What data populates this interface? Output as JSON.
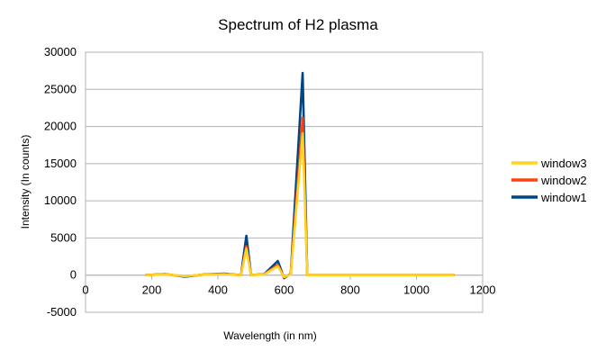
{
  "chart_data": {
    "type": "line",
    "title": "Spectrum of H2 plasma",
    "xlabel": "Wavelength (in nm)",
    "ylabel": "Intensity (In counts)",
    "xlim": [
      0,
      1200
    ],
    "ylim": [
      -5000,
      30000
    ],
    "x_ticks": [
      "0",
      "200",
      "400",
      "600",
      "800",
      "1000",
      "1200"
    ],
    "y_ticks": [
      "-5000",
      "0",
      "5000",
      "10000",
      "15000",
      "20000",
      "25000",
      "30000"
    ],
    "grid": "horizontal",
    "legend_position": "right",
    "series": [
      {
        "name": "window1",
        "color": "#004586",
        "points": [
          [
            180,
            0
          ],
          [
            240,
            150
          ],
          [
            300,
            -200
          ],
          [
            360,
            100
          ],
          [
            420,
            200
          ],
          [
            470,
            0
          ],
          [
            486,
            5300
          ],
          [
            500,
            0
          ],
          [
            540,
            150
          ],
          [
            581,
            1900
          ],
          [
            600,
            -400
          ],
          [
            620,
            200
          ],
          [
            656,
            27200
          ],
          [
            670,
            0
          ],
          [
            800,
            0
          ],
          [
            1000,
            0
          ],
          [
            1115,
            0
          ]
        ]
      },
      {
        "name": "window2",
        "color": "#ff420e",
        "points": [
          [
            180,
            0
          ],
          [
            240,
            120
          ],
          [
            300,
            -150
          ],
          [
            360,
            80
          ],
          [
            420,
            150
          ],
          [
            470,
            0
          ],
          [
            486,
            3900
          ],
          [
            500,
            0
          ],
          [
            540,
            120
          ],
          [
            581,
            1400
          ],
          [
            600,
            -300
          ],
          [
            620,
            150
          ],
          [
            656,
            21200
          ],
          [
            670,
            0
          ],
          [
            800,
            0
          ],
          [
            1000,
            0
          ],
          [
            1115,
            0
          ]
        ]
      },
      {
        "name": "window3",
        "color": "#ffd320",
        "points": [
          [
            180,
            0
          ],
          [
            240,
            100
          ],
          [
            300,
            -120
          ],
          [
            360,
            60
          ],
          [
            420,
            120
          ],
          [
            470,
            0
          ],
          [
            486,
            3600
          ],
          [
            500,
            0
          ],
          [
            540,
            100
          ],
          [
            581,
            1200
          ],
          [
            600,
            -250
          ],
          [
            620,
            100
          ],
          [
            656,
            19100
          ],
          [
            670,
            0
          ],
          [
            800,
            0
          ],
          [
            1000,
            0
          ],
          [
            1115,
            0
          ]
        ]
      }
    ],
    "legend_order": [
      "window3",
      "window2",
      "window1"
    ]
  }
}
